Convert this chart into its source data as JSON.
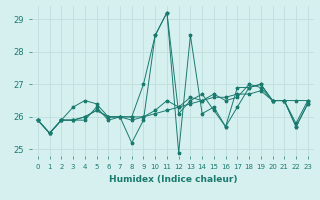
{
  "xlabel": "Humidex (Indice chaleur)",
  "ylabel": "",
  "xlim": [
    -0.5,
    23.5
  ],
  "ylim": [
    24.8,
    29.4
  ],
  "yticks": [
    25,
    26,
    27,
    28,
    29
  ],
  "xticks": [
    0,
    1,
    2,
    3,
    4,
    5,
    6,
    7,
    8,
    9,
    10,
    11,
    12,
    13,
    14,
    15,
    16,
    17,
    18,
    19,
    20,
    21,
    22,
    23
  ],
  "background_color": "#d6f0f0",
  "grid_color": "#c0dede",
  "line_color": "#1a7a6e",
  "series": [
    [
      25.9,
      25.5,
      25.9,
      25.9,
      25.9,
      26.3,
      25.9,
      26.0,
      25.2,
      25.9,
      28.5,
      29.2,
      24.9,
      28.5,
      26.1,
      26.3,
      25.7,
      26.3,
      26.9,
      27.0,
      26.5,
      26.5,
      25.7,
      26.4
    ],
    [
      25.9,
      25.5,
      25.9,
      25.9,
      26.0,
      26.2,
      26.0,
      26.0,
      26.0,
      26.0,
      26.1,
      26.2,
      26.3,
      26.4,
      26.5,
      26.6,
      26.6,
      26.7,
      26.7,
      26.8,
      26.5,
      26.5,
      26.5,
      26.5
    ],
    [
      25.9,
      25.5,
      25.9,
      26.3,
      26.5,
      26.4,
      26.0,
      26.0,
      25.9,
      26.0,
      26.2,
      26.5,
      26.3,
      26.6,
      26.5,
      26.7,
      26.5,
      26.6,
      27.0,
      26.9,
      26.5,
      26.5,
      25.8,
      26.5
    ],
    [
      25.9,
      25.5,
      25.9,
      25.9,
      26.0,
      26.2,
      26.0,
      26.0,
      26.0,
      27.0,
      28.5,
      29.2,
      26.1,
      26.5,
      26.7,
      26.2,
      25.7,
      26.9,
      26.9,
      27.0,
      26.5,
      26.5,
      25.7,
      26.4
    ]
  ],
  "figsize": [
    3.2,
    2.0
  ],
  "dpi": 100
}
